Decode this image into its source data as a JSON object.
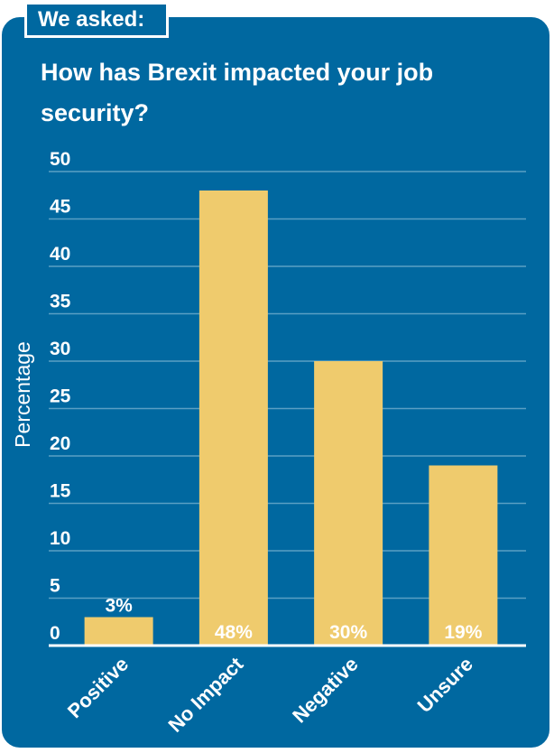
{
  "badge": "We asked:",
  "question": "How has Brexit impacted your job security?",
  "colors": {
    "background": "#0068a0",
    "bar": "#efcb6d",
    "text": "#ffffff",
    "grid": "#5a9fc4"
  },
  "chart_data": {
    "type": "bar",
    "categories": [
      "Positive",
      "No Impact",
      "Negative",
      "Unsure"
    ],
    "values": [
      3,
      48,
      30,
      19
    ],
    "data_labels": [
      "3%",
      "48%",
      "30%",
      "19%"
    ],
    "ylabel": "Percentage",
    "xlabel": "",
    "ylim": [
      0,
      50
    ],
    "yticks": [
      0,
      5,
      10,
      15,
      20,
      25,
      30,
      35,
      40,
      45,
      50
    ],
    "grid": true
  }
}
